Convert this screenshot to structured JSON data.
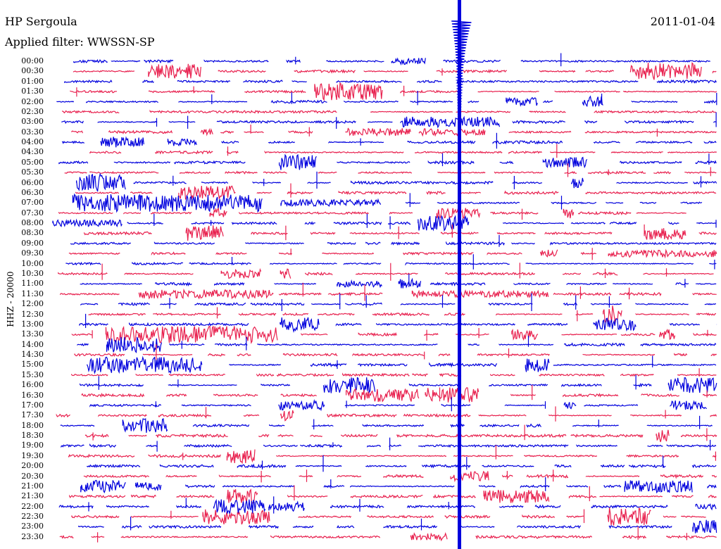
{
  "header": {
    "station": "HP Sergoula",
    "date": "2011-01-04",
    "filter": "Applied filter: WWSSN-SP"
  },
  "channel_label": "HHZ - 20000",
  "chart_data": {
    "type": "line",
    "title": "HP Sergoula",
    "ylabel": "HHZ - 20000",
    "row_labels": [
      "00:00",
      "00:30",
      "01:00",
      "01:30",
      "02:00",
      "02:30",
      "03:00",
      "03:30",
      "04:00",
      "04:30",
      "05:00",
      "05:30",
      "06:00",
      "06:30",
      "07:00",
      "07:30",
      "08:00",
      "08:30",
      "09:00",
      "09:30",
      "10:00",
      "10:30",
      "11:00",
      "11:30",
      "12:00",
      "12:30",
      "13:00",
      "13:30",
      "14:00",
      "14:30",
      "15:00",
      "15:30",
      "16:00",
      "16:30",
      "17:00",
      "17:30",
      "18:00",
      "18:30",
      "19:00",
      "19:30",
      "20:00",
      "20:30",
      "21:00",
      "21:30",
      "22:00",
      "22:30",
      "23:00",
      "23:30"
    ],
    "colors": [
      "#0000dd",
      "#e8204e"
    ]
  }
}
